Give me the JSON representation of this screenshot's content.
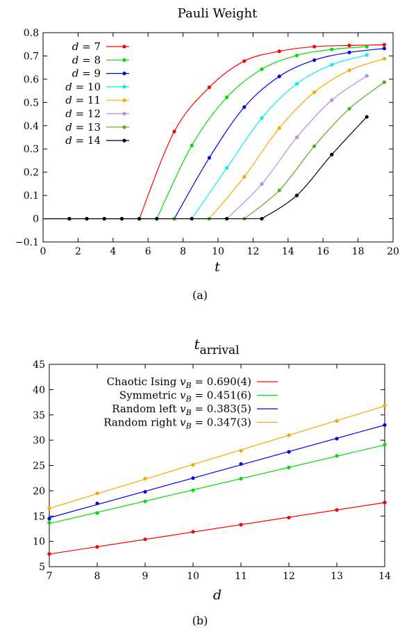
{
  "chart_data": [
    {
      "type": "line",
      "title": "Pauli Weight",
      "caption": "(a)",
      "xlabel": "t",
      "ylabel": "",
      "xlim": [
        0,
        20
      ],
      "ylim": [
        -0.1,
        0.8
      ],
      "xticks": [
        "0",
        "2",
        "4",
        "6",
        "8",
        "10",
        "12",
        "14",
        "16",
        "18",
        "20"
      ],
      "yticks": [
        "−0.1",
        "0",
        "0.1",
        "0.2",
        "0.3",
        "0.4",
        "0.5",
        "0.6",
        "0.7",
        "0.8"
      ],
      "legend_position": "top-left",
      "series": [
        {
          "name": "d = 7",
          "label_var": "d",
          "label_val": "7",
          "color": "#ff0000",
          "x": [
            1.5,
            2.5,
            3.5,
            4.5,
            5.5,
            7.5,
            9.5,
            11.5,
            13.5,
            15.5,
            17.5,
            19.5
          ],
          "y": [
            0,
            0,
            0,
            0,
            0,
            0.375,
            0.565,
            0.678,
            0.72,
            0.74,
            0.745,
            0.748
          ]
        },
        {
          "name": "d = 8",
          "label_var": "d",
          "label_val": "8",
          "color": "#00dd00",
          "x": [
            1.5,
            2.5,
            3.5,
            4.5,
            5.5,
            6.5,
            8.5,
            10.5,
            12.5,
            14.5,
            16.5,
            18.5
          ],
          "y": [
            0,
            0,
            0,
            0,
            0,
            0,
            0.315,
            0.522,
            0.643,
            0.702,
            0.728,
            0.74
          ]
        },
        {
          "name": "d = 9",
          "label_var": "d",
          "label_val": "9",
          "color": "#0000ee",
          "x": [
            1.5,
            2.5,
            3.5,
            4.5,
            5.5,
            7.5,
            9.5,
            11.5,
            13.5,
            15.5,
            17.5,
            19.5
          ],
          "y": [
            0,
            0,
            0,
            0,
            0,
            0,
            0.262,
            0.48,
            0.612,
            0.682,
            0.715,
            0.732
          ]
        },
        {
          "name": "d = 10",
          "label_var": "d",
          "label_val": "10",
          "color": "#00eeee",
          "x": [
            1.5,
            2.5,
            3.5,
            4.5,
            5.5,
            6.5,
            8.5,
            10.5,
            12.5,
            14.5,
            16.5,
            18.5
          ],
          "y": [
            0,
            0,
            0,
            0,
            0,
            0,
            0,
            0.218,
            0.433,
            0.58,
            0.662,
            0.704
          ]
        },
        {
          "name": "d = 11",
          "label_var": "d",
          "label_val": "11",
          "color": "#ffa500",
          "x": [
            1.5,
            2.5,
            3.5,
            4.5,
            5.5,
            7.5,
            9.5,
            11.5,
            13.5,
            15.5,
            17.5,
            19.5
          ],
          "y": [
            0,
            0,
            0,
            0,
            0,
            0,
            0,
            0.18,
            0.39,
            0.544,
            0.638,
            0.688
          ]
        },
        {
          "name": "d = 12",
          "label_var": "d",
          "label_val": "12",
          "color": "#bb88ee",
          "x": [
            1.5,
            2.5,
            3.5,
            4.5,
            5.5,
            6.5,
            8.5,
            10.5,
            12.5,
            14.5,
            16.5,
            18.5
          ],
          "y": [
            0,
            0,
            0,
            0,
            0,
            0,
            0,
            0,
            0.149,
            0.35,
            0.51,
            0.614
          ]
        },
        {
          "name": "d = 13",
          "label_var": "d",
          "label_val": "13",
          "color": "#55aa22",
          "x": [
            1.5,
            2.5,
            3.5,
            4.5,
            5.5,
            7.5,
            9.5,
            11.5,
            13.5,
            15.5,
            17.5,
            19.5
          ],
          "y": [
            0,
            0,
            0,
            0,
            0,
            0,
            0,
            0,
            0.122,
            0.312,
            0.473,
            0.587
          ]
        },
        {
          "name": "d = 14",
          "label_var": "d",
          "label_val": "14",
          "color": "#000000",
          "x": [
            1.5,
            2.5,
            3.5,
            4.5,
            5.5,
            6.5,
            8.5,
            10.5,
            12.5,
            14.5,
            16.5,
            18.5
          ],
          "y": [
            0,
            0,
            0,
            0,
            0,
            0,
            0,
            0,
            0,
            0.1,
            0.276,
            0.438
          ]
        }
      ]
    },
    {
      "type": "line",
      "title_base": "t",
      "title_sub": "arrival",
      "caption": "(b)",
      "xlabel": "d",
      "ylabel": "",
      "xlim": [
        7,
        14
      ],
      "ylim": [
        5,
        45
      ],
      "xticks": [
        "7",
        "8",
        "9",
        "10",
        "11",
        "12",
        "13",
        "14"
      ],
      "yticks": [
        "5",
        "10",
        "15",
        "20",
        "25",
        "30",
        "35",
        "40",
        "45"
      ],
      "legend_position": "top-left",
      "series": [
        {
          "name": "Chaotic Ising v_B = 0.690(4)",
          "label_text": "Chaotic Ising",
          "label_value": " = 0.690(4)",
          "color": "#ff0000",
          "x": [
            7,
            8,
            9,
            10,
            11,
            12,
            13,
            14
          ],
          "y": [
            7.5,
            8.9,
            10.4,
            11.9,
            13.3,
            14.7,
            16.2,
            17.7
          ]
        },
        {
          "name": "Symmetric v_B = 0.451(6)",
          "label_text": "Symmetric",
          "label_value": " = 0.451(6)",
          "color": "#00dd00",
          "x": [
            7,
            8,
            9,
            10,
            11,
            12,
            13,
            14
          ],
          "y": [
            13.7,
            15.6,
            17.9,
            20.1,
            22.4,
            24.6,
            26.9,
            29.1
          ]
        },
        {
          "name": "Random left v_B = 0.383(5)",
          "label_text": "Random left",
          "label_value": " = 0.383(5)",
          "color": "#0000ee",
          "x": [
            7,
            8,
            9,
            10,
            11,
            12,
            13,
            14
          ],
          "y": [
            14.5,
            17.5,
            19.8,
            22.5,
            25.3,
            27.7,
            30.3,
            33
          ]
        },
        {
          "name": "Random right v_B = 0.347(3)",
          "label_text": "Random right",
          "label_value": " = 0.347(3)",
          "color": "#ffa500",
          "x": [
            7,
            8,
            9,
            10,
            11,
            12,
            13,
            14
          ],
          "y": [
            16.5,
            19.5,
            22.4,
            25.1,
            27.9,
            31,
            33.8,
            36.9
          ]
        }
      ]
    }
  ]
}
